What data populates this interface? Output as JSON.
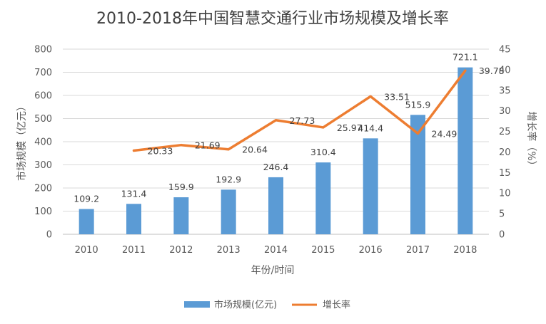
{
  "chart_data": {
    "type": "bar",
    "title": "2010-2018年中国智慧交通行业市场规模及增长率",
    "xlabel": "年份/时间",
    "ylabel": "市场规模（亿元）",
    "y2label": "增长率（%）",
    "categories": [
      "2010",
      "2011",
      "2012",
      "2013",
      "2014",
      "2015",
      "2016",
      "2017",
      "2018"
    ],
    "ylim": [
      0,
      800
    ],
    "yticks": [
      0,
      100,
      200,
      300,
      400,
      500,
      600,
      700,
      800
    ],
    "y2lim": [
      0,
      45
    ],
    "y2ticks": [
      0,
      5,
      10,
      15,
      20,
      25,
      30,
      35,
      40,
      45
    ],
    "grid": true,
    "legend": "bottom",
    "series": [
      {
        "name": "市场规模(亿元)",
        "type": "bar",
        "axis": "left",
        "color": "#5b9bd5",
        "values": [
          109.2,
          131.4,
          159.9,
          192.9,
          246.4,
          310.4,
          414.4,
          515.9,
          721.1
        ],
        "labels": [
          "109.2",
          "131.4",
          "159.9",
          "192.9",
          "246.4",
          "310.4",
          "414.4",
          "515.9",
          "721.1"
        ]
      },
      {
        "name": "增长率",
        "type": "line",
        "axis": "right",
        "color": "#ed7d31",
        "values": [
          null,
          20.33,
          21.69,
          20.64,
          27.73,
          25.97,
          33.51,
          24.49,
          39.78
        ],
        "labels": [
          null,
          "20.33",
          "21.69",
          "20.64",
          "27.73",
          "25.97",
          "33.51",
          "24.49",
          "39.78"
        ]
      }
    ]
  }
}
